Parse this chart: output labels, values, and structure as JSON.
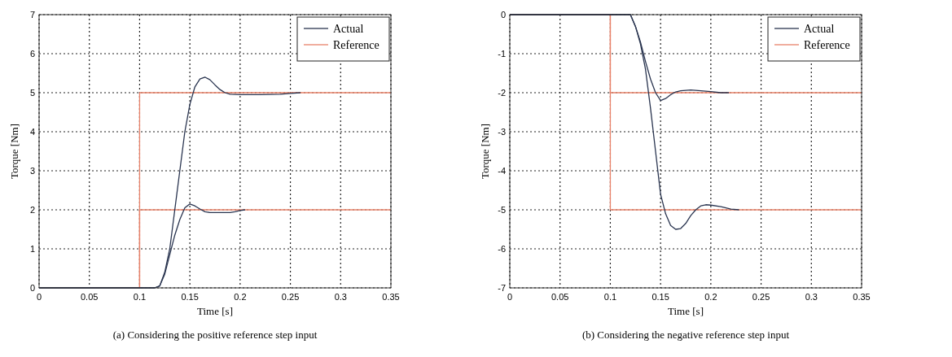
{
  "chart_data": [
    {
      "type": "line",
      "xlabel": "Time [s]",
      "ylabel": "Torque [Nm]",
      "annotations": [
        "(a) Considering the positive reference step input"
      ],
      "xlim": [
        0,
        0.35
      ],
      "ylim": [
        0,
        7
      ],
      "xticks": [
        0,
        0.05,
        0.1,
        0.15,
        0.2,
        0.25,
        0.3,
        0.35
      ],
      "yticks": [
        0,
        1,
        2,
        3,
        4,
        5,
        6,
        7
      ],
      "grid": true,
      "legend": "top right",
      "series": [
        {
          "name": "Reference",
          "color": "#e8826a",
          "x": [
            0,
            0.1,
            0.1,
            0.35
          ],
          "values": [
            0,
            0,
            5,
            5
          ]
        },
        {
          "color": "#e8826a",
          "x": [
            0,
            0.1,
            0.1,
            0.35
          ],
          "values": [
            0,
            0,
            2,
            2
          ]
        },
        {
          "name": "Actual",
          "color": "#2a3550",
          "x": [
            0,
            0.115,
            0.12,
            0.125,
            0.13,
            0.135,
            0.14,
            0.145,
            0.15,
            0.155,
            0.16,
            0.165,
            0.17,
            0.175,
            0.18,
            0.185,
            0.19,
            0.2,
            0.21,
            0.22,
            0.24,
            0.25,
            0.26
          ],
          "values": [
            0,
            0,
            0.05,
            0.4,
            1.0,
            2.0,
            3.0,
            4.0,
            4.7,
            5.15,
            5.35,
            5.4,
            5.33,
            5.2,
            5.08,
            5.0,
            4.96,
            4.95,
            4.95,
            4.95,
            4.96,
            4.98,
            5.0
          ]
        },
        {
          "color": "#2a3550",
          "x": [
            0,
            0.115,
            0.12,
            0.125,
            0.13,
            0.135,
            0.14,
            0.145,
            0.15,
            0.155,
            0.16,
            0.165,
            0.17,
            0.18,
            0.19,
            0.195,
            0.2,
            0.205
          ],
          "values": [
            0,
            0,
            0.05,
            0.35,
            0.85,
            1.35,
            1.75,
            2.05,
            2.15,
            2.1,
            2.02,
            1.95,
            1.93,
            1.93,
            1.93,
            1.95,
            1.98,
            2.0
          ]
        }
      ]
    },
    {
      "type": "line",
      "xlabel": "Time [s]",
      "ylabel": "Torque [Nm]",
      "annotations": [
        "(b) Considering the negative reference step input"
      ],
      "xlim": [
        0,
        0.35
      ],
      "ylim": [
        -7,
        0
      ],
      "xticks": [
        0,
        0.05,
        0.1,
        0.15,
        0.2,
        0.25,
        0.3,
        0.35
      ],
      "yticks": [
        -7,
        -6,
        -5,
        -4,
        -3,
        -2,
        -1,
        0
      ],
      "grid": true,
      "legend": "top right",
      "series": [
        {
          "name": "Reference",
          "color": "#e8826a",
          "x": [
            0,
            0.1,
            0.1,
            0.35
          ],
          "values": [
            0,
            0,
            -5,
            -5
          ]
        },
        {
          "color": "#e8826a",
          "x": [
            0,
            0.1,
            0.1,
            0.35
          ],
          "values": [
            0,
            0,
            -2,
            -2
          ]
        },
        {
          "name": "Actual",
          "color": "#2a3550",
          "x": [
            0,
            0.12,
            0.125,
            0.13,
            0.135,
            0.14,
            0.145,
            0.15,
            0.155,
            0.16,
            0.165,
            0.17,
            0.175,
            0.18,
            0.185,
            0.19,
            0.195,
            0.2,
            0.21,
            0.22,
            0.228
          ],
          "values": [
            0,
            0,
            -0.3,
            -0.75,
            -1.4,
            -2.4,
            -3.5,
            -4.6,
            -5.1,
            -5.4,
            -5.5,
            -5.48,
            -5.35,
            -5.15,
            -5.0,
            -4.9,
            -4.87,
            -4.88,
            -4.92,
            -4.98,
            -5.0
          ]
        },
        {
          "color": "#2a3550",
          "x": [
            0,
            0.12,
            0.125,
            0.13,
            0.135,
            0.14,
            0.145,
            0.15,
            0.155,
            0.16,
            0.165,
            0.17,
            0.18,
            0.19,
            0.2,
            0.21,
            0.218
          ],
          "values": [
            0,
            0,
            -0.3,
            -0.7,
            -1.2,
            -1.65,
            -2.0,
            -2.2,
            -2.15,
            -2.05,
            -1.98,
            -1.95,
            -1.93,
            -1.95,
            -1.97,
            -2.0,
            -2.0
          ]
        }
      ]
    }
  ]
}
